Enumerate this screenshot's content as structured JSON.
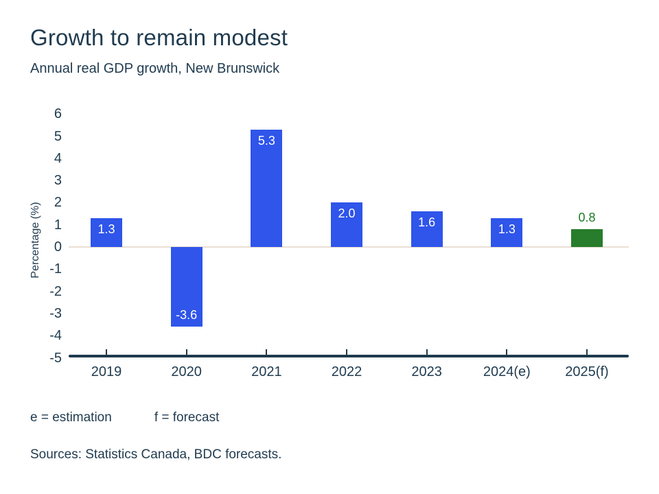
{
  "header": {
    "title": "Growth to remain modest",
    "subtitle": "Annual real GDP growth, New Brunswick"
  },
  "chart_data": {
    "type": "bar",
    "title": "Growth to remain modest",
    "subtitle": "Annual real GDP growth, New Brunswick",
    "categories": [
      "2019",
      "2020",
      "2021",
      "2022",
      "2023",
      "2024(e)",
      "2025(f)"
    ],
    "values": [
      1.3,
      -3.6,
      5.3,
      2.0,
      1.6,
      1.3,
      0.8
    ],
    "labels": [
      "1.3",
      "-3.6",
      "5.3",
      "2.0",
      "1.6",
      "1.3",
      "0.8"
    ],
    "xlabel": "",
    "ylabel": "Percentage (%)",
    "ylim": [
      -5,
      6
    ],
    "yticks": [
      6,
      5,
      4,
      3,
      2,
      1,
      0,
      -1,
      -2,
      -3,
      -4,
      -5
    ],
    "grid": "zero-line-only",
    "legend": "none",
    "bar_colors": [
      "#2F55EA",
      "#2F55EA",
      "#2F55EA",
      "#2F55EA",
      "#2F55EA",
      "#2F55EA",
      "#277D2B"
    ],
    "label_placement": [
      "inside-top",
      "inside-bottom",
      "inside-top",
      "inside-top",
      "inside-top",
      "inside-top",
      "above"
    ],
    "label_colors": [
      "#FFFFFF",
      "#FFFFFF",
      "#FFFFFF",
      "#FFFFFF",
      "#FFFFFF",
      "#FFFFFF",
      "#1E7A25"
    ]
  },
  "footnotes": {
    "estimation": "e = estimation",
    "forecast": "f = forecast",
    "sources": "Sources: Statistics Canada, BDC forecasts."
  },
  "colors": {
    "text": "#213C50",
    "axis": "#1F3B4E",
    "zero_line": "#EADFD4",
    "bar_blue": "#2F55EA",
    "bar_green": "#277D2B",
    "background": "#FFFFFF"
  }
}
